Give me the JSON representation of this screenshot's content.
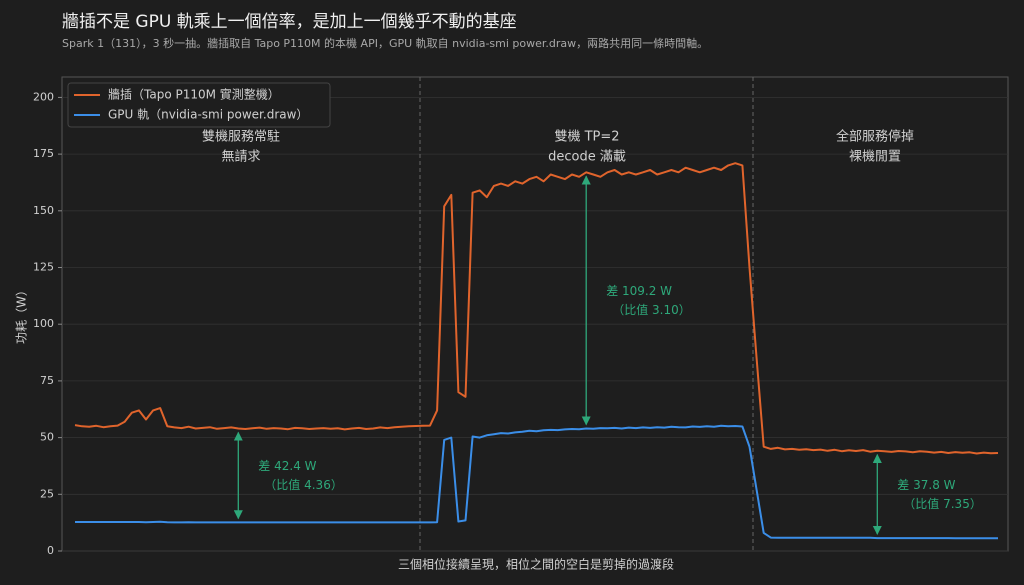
{
  "chart_data": {
    "type": "line",
    "title": "牆插不是 GPU 軌乘上一個倍率，是加上一個幾乎不動的基座",
    "subtitle": "Spark 1（131），3 秒一抽。牆插取自 Tapo P110M 的本機 API，GPU 軌取自 nvidia-smi power.draw，兩路共用同一條時間軸。",
    "xlabel": "三個相位接續呈現，相位之間的空白是剪掉的過渡段",
    "ylabel": "功耗（W）",
    "ylim": [
      0,
      209
    ],
    "yticks": [
      0,
      25,
      50,
      75,
      100,
      125,
      150,
      175,
      200
    ],
    "grid": true,
    "legend": "upper left",
    "series": [
      {
        "name": "牆插（Tapo P110M 實測整機）",
        "color": "#e0642c",
        "values": [
          55.5,
          55,
          54.8,
          55.2,
          54.6,
          55,
          55.3,
          57,
          61,
          62,
          58,
          62,
          63,
          55,
          54.5,
          54.2,
          54.8,
          54,
          54.3,
          54.6,
          53.9,
          54.2,
          54.5,
          54,
          53.8,
          54.1,
          54.4,
          53.9,
          54.2,
          54,
          53.7,
          54.3,
          54.1,
          53.8,
          54,
          54.2,
          53.9,
          54.1,
          53.6,
          54,
          54.3,
          53.8,
          54,
          54.5,
          54.2,
          54.6,
          54.8,
          55,
          55.1,
          55.2,
          55.3,
          62,
          152,
          157,
          70,
          68,
          158,
          159,
          156,
          161,
          162,
          161,
          163,
          162,
          164,
          165,
          163,
          166,
          165,
          164,
          166,
          165,
          167,
          166,
          165,
          167,
          168,
          166,
          167,
          166,
          167,
          168,
          166,
          167,
          168,
          167,
          169,
          168,
          167,
          168,
          169,
          168,
          170,
          171,
          170,
          125,
          85,
          46,
          45,
          45.5,
          44.8,
          45,
          44.6,
          44.9,
          44.5,
          44.7,
          44.2,
          44.6,
          44,
          44.4,
          44.1,
          44.5,
          43.8,
          44.2,
          44,
          43.7,
          44.1,
          43.9,
          43.5,
          44,
          43.8,
          43.4,
          43.7,
          43.2,
          43.6,
          43.3,
          43.5,
          43,
          43.4,
          43.1,
          43.2
        ]
      },
      {
        "name": "GPU 軌（nvidia-smi power.draw）",
        "color": "#3b8ee8",
        "values": [
          12.8,
          12.8,
          12.8,
          12.8,
          12.8,
          12.8,
          12.8,
          12.8,
          12.8,
          12.8,
          12.7,
          12.8,
          12.9,
          12.7,
          12.6,
          12.6,
          12.7,
          12.6,
          12.6,
          12.6,
          12.6,
          12.6,
          12.6,
          12.6,
          12.6,
          12.6,
          12.6,
          12.6,
          12.6,
          12.6,
          12.6,
          12.6,
          12.6,
          12.6,
          12.6,
          12.6,
          12.6,
          12.6,
          12.6,
          12.6,
          12.6,
          12.6,
          12.6,
          12.6,
          12.6,
          12.6,
          12.6,
          12.6,
          12.6,
          12.6,
          12.6,
          12.7,
          49,
          50,
          13,
          13.5,
          50.5,
          50,
          51,
          51.5,
          52,
          51.8,
          52.3,
          52.6,
          53,
          52.8,
          53.2,
          53.4,
          53.3,
          53.6,
          53.8,
          53.7,
          54,
          53.9,
          54.2,
          54.1,
          54.3,
          54,
          54.4,
          54.2,
          54.5,
          54.3,
          54.6,
          54.4,
          54.8,
          54.6,
          54.5,
          54.9,
          54.7,
          55,
          54.8,
          55.2,
          55,
          55.1,
          54.9,
          46,
          27,
          8,
          5.9,
          5.8,
          5.8,
          5.8,
          5.8,
          5.8,
          5.8,
          5.8,
          5.8,
          5.8,
          5.8,
          5.8,
          5.8,
          5.8,
          5.8,
          5.7,
          5.7,
          5.7,
          5.7,
          5.7,
          5.7,
          5.7,
          5.7,
          5.7,
          5.7,
          5.7,
          5.6,
          5.6,
          5.6,
          5.6,
          5.6,
          5.6,
          5.6
        ]
      }
    ],
    "phases": [
      {
        "lines": [
          "雙機服務常駐",
          "無請求"
        ]
      },
      {
        "lines": [
          "雙機 TP=2",
          "decode 滿載"
        ]
      },
      {
        "lines": [
          "全部服務停掉",
          "裸機閒置"
        ]
      }
    ],
    "annotations": [
      {
        "lines": [
          "差 42.4 W",
          "（比值 4.36）"
        ]
      },
      {
        "lines": [
          "差 109.2 W",
          "（比值 3.10）"
        ]
      },
      {
        "lines": [
          "差 37.8 W",
          "（比值 7.35）"
        ]
      }
    ],
    "annotation_color": "#2ea87a"
  }
}
